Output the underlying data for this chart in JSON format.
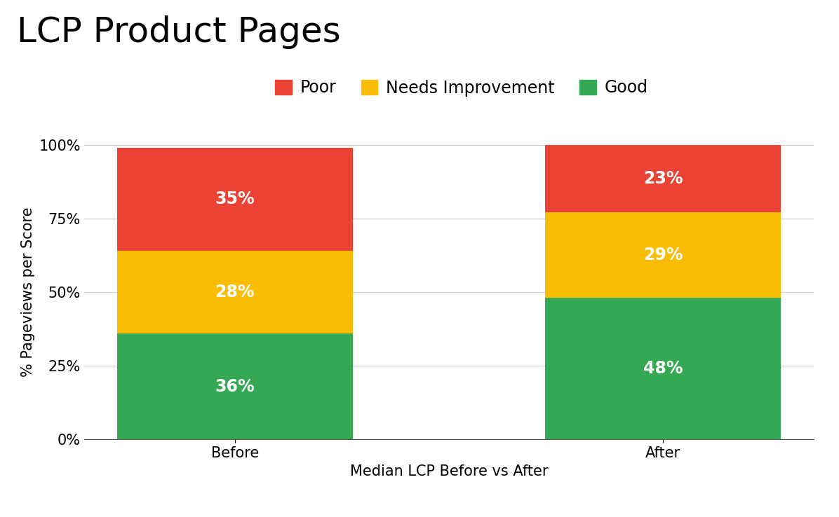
{
  "title": "LCP Product Pages",
  "xlabel": "Median LCP Before vs After",
  "ylabel": "% Pageviews per Score",
  "categories": [
    "Before",
    "After"
  ],
  "good": [
    36,
    48
  ],
  "needs_improvement": [
    28,
    29
  ],
  "poor": [
    35,
    23
  ],
  "good_color": "#34a853",
  "needs_improvement_color": "#fbbc04",
  "poor_color": "#ea4335",
  "good_label": "Good",
  "needs_improvement_label": "Needs Improvement",
  "poor_label": "Poor",
  "label_color": "#ffffff",
  "label_fontsize": 17,
  "title_fontsize": 36,
  "axis_fontsize": 15,
  "legend_fontsize": 17,
  "tick_fontsize": 15,
  "bar_width": 0.55,
  "background_color": "#ffffff",
  "grid_color": "#cccccc",
  "yticks": [
    0,
    25,
    50,
    75,
    100
  ],
  "ytick_labels": [
    "0%",
    "25%",
    "50%",
    "75%",
    "100%"
  ]
}
